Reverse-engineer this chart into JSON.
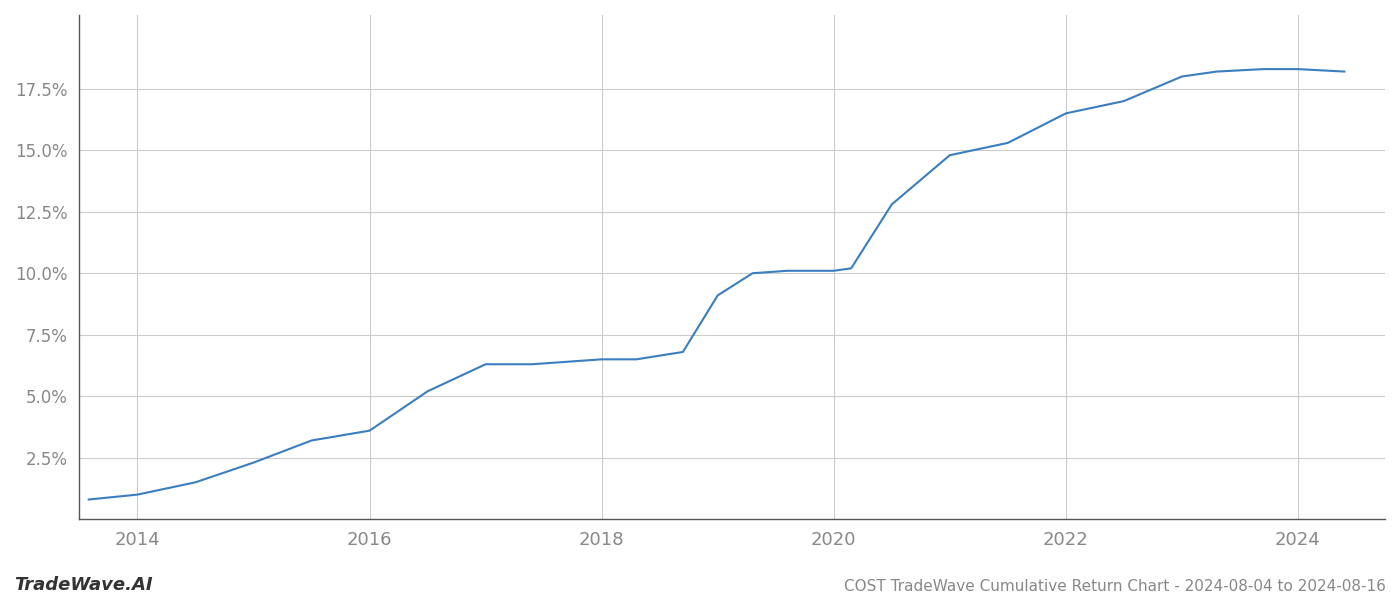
{
  "x_years": [
    2013.58,
    2014.0,
    2014.5,
    2015.0,
    2015.5,
    2016.0,
    2016.5,
    2017.0,
    2017.4,
    2017.7,
    2018.0,
    2018.3,
    2018.7,
    2019.0,
    2019.3,
    2019.6,
    2020.0,
    2020.15,
    2020.5,
    2021.0,
    2021.5,
    2022.0,
    2022.5,
    2023.0,
    2023.3,
    2023.7,
    2024.0,
    2024.4
  ],
  "y_values": [
    0.008,
    0.01,
    0.015,
    0.023,
    0.032,
    0.036,
    0.052,
    0.063,
    0.063,
    0.064,
    0.065,
    0.065,
    0.068,
    0.091,
    0.1,
    0.101,
    0.101,
    0.102,
    0.128,
    0.148,
    0.153,
    0.165,
    0.17,
    0.18,
    0.182,
    0.183,
    0.183,
    0.182
  ],
  "line_color": "#3a7ebf",
  "line_width": 1.5,
  "title": "COST TradeWave Cumulative Return Chart - 2024-08-04 to 2024-08-16",
  "watermark": "TradeWave.AI",
  "background_color": "#ffffff",
  "grid_color": "#cccccc",
  "tick_color": "#888888",
  "spine_color": "#555555",
  "xlim": [
    2013.5,
    2024.75
  ],
  "ylim": [
    0.0,
    0.205
  ],
  "yticks": [
    0.025,
    0.05,
    0.075,
    0.1,
    0.125,
    0.15,
    0.175
  ],
  "xticks": [
    2014,
    2016,
    2018,
    2020,
    2022,
    2024
  ],
  "ylabel_fontsize": 12,
  "xlabel_fontsize": 13,
  "title_fontsize": 11,
  "watermark_fontsize": 13
}
